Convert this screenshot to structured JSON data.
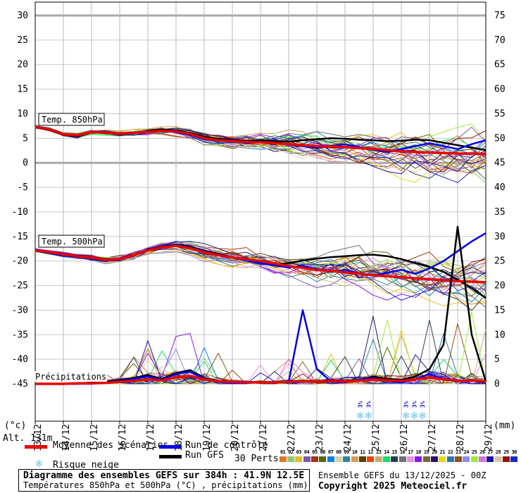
{
  "chart": {
    "alt_label": "Alt. 131m",
    "left_axis": {
      "unit": "(°c)",
      "ticks": [
        30,
        25,
        20,
        15,
        10,
        5,
        0,
        -5,
        -10,
        -15,
        -20,
        -25,
        -30,
        -35,
        -40,
        -45
      ]
    },
    "right_axis": {
      "unit": "(mm)",
      "ticks": [
        75,
        70,
        65,
        60,
        55,
        50,
        45,
        40,
        35,
        30,
        25,
        20,
        15,
        10,
        5,
        0
      ]
    },
    "x_axis": {
      "labels": [
        "13/12",
        "14/12",
        "15/12",
        "16/12",
        "17/12",
        "18/12",
        "19/12",
        "20/12",
        "21/12",
        "22/12",
        "23/12",
        "24/12",
        "25/12",
        "26/12",
        "27/12",
        "28/12",
        "29/12"
      ]
    }
  },
  "chart_data": {
    "type": "line",
    "x_hours": [
      0,
      12,
      24,
      36,
      48,
      60,
      72,
      84,
      96,
      108,
      120,
      132,
      144,
      156,
      168,
      180,
      192,
      204,
      216,
      228,
      240,
      252,
      264,
      276,
      288,
      300,
      312,
      324,
      336,
      348,
      360,
      372,
      384
    ],
    "panels": {
      "temp850": {
        "label": "Temp. 850hPa",
        "mean": [
          7.3,
          6.8,
          5.8,
          5.6,
          6.3,
          6.2,
          5.9,
          6.1,
          6.3,
          6.5,
          6.4,
          5.9,
          5.0,
          4.6,
          4.4,
          4.2,
          4.2,
          4.0,
          3.8,
          3.6,
          3.4,
          3.3,
          3.2,
          3.0,
          2.8,
          2.6,
          2.3,
          2.2,
          2.1,
          2.0,
          1.9,
          1.9,
          1.8
        ],
        "control": [
          7.4,
          6.9,
          5.9,
          5.5,
          6.4,
          6.3,
          6.0,
          6.2,
          6.4,
          6.6,
          6.3,
          5.8,
          4.8,
          4.5,
          4.3,
          4.0,
          4.3,
          4.1,
          3.7,
          3.4,
          3.0,
          3.4,
          3.8,
          3.2,
          2.6,
          2.2,
          2.8,
          3.4,
          4.0,
          3.4,
          2.8,
          3.8,
          4.6
        ],
        "gfs": [
          7.2,
          6.7,
          5.7,
          5.4,
          6.2,
          6.1,
          5.8,
          6.0,
          6.5,
          6.8,
          6.6,
          6.1,
          5.3,
          4.9,
          4.6,
          4.4,
          4.6,
          4.4,
          4.3,
          4.6,
          4.8,
          5.0,
          4.9,
          4.7,
          4.6,
          4.4,
          4.5,
          4.7,
          4.6,
          4.1,
          3.6,
          3.1,
          2.6
        ],
        "sigma": [
          0.35,
          0.4,
          0.45,
          0.5,
          0.55,
          0.6,
          0.65,
          0.7,
          0.75,
          0.85,
          0.95,
          1.05,
          1.2,
          1.35,
          1.5,
          1.7,
          1.9,
          2.1,
          2.35,
          2.6,
          2.85,
          3.1,
          3.35,
          3.6,
          3.85,
          4.1,
          4.35,
          4.6,
          4.85,
          5.1,
          5.4,
          5.7,
          6.0
        ]
      },
      "temp500": {
        "label": "Temp. 500hPa",
        "mean": [
          -17.8,
          -18.2,
          -18.6,
          -19.0,
          -19.3,
          -19.8,
          -19.6,
          -18.8,
          -17.8,
          -17.2,
          -16.9,
          -17.4,
          -18.2,
          -18.8,
          -19.3,
          -19.6,
          -20.0,
          -20.5,
          -21.0,
          -21.4,
          -21.8,
          -22.0,
          -22.3,
          -22.6,
          -22.9,
          -23.1,
          -23.3,
          -23.5,
          -23.7,
          -23.9,
          -24.1,
          -24.2,
          -24.3
        ],
        "control": [
          -17.7,
          -18.1,
          -18.5,
          -18.9,
          -19.2,
          -19.7,
          -19.5,
          -18.7,
          -17.7,
          -17.0,
          -16.7,
          -17.3,
          -18.0,
          -18.7,
          -19.2,
          -19.8,
          -20.4,
          -20.9,
          -21.3,
          -21.0,
          -21.6,
          -22.2,
          -21.8,
          -22.5,
          -23.0,
          -22.4,
          -21.8,
          -22.6,
          -21.5,
          -20.0,
          -18.0,
          -16.0,
          -14.3
        ],
        "gfs": [
          -17.9,
          -18.3,
          -18.7,
          -19.1,
          -19.4,
          -19.9,
          -19.7,
          -18.9,
          -17.6,
          -17.0,
          -16.6,
          -17.1,
          -17.9,
          -18.5,
          -19.3,
          -19.7,
          -20.2,
          -20.7,
          -20.4,
          -19.9,
          -19.5,
          -19.2,
          -19.0,
          -18.8,
          -18.7,
          -19.0,
          -19.6,
          -20.4,
          -21.2,
          -22.2,
          -23.8,
          -25.5,
          -27.5
        ],
        "sigma": [
          0.4,
          0.45,
          0.5,
          0.55,
          0.6,
          0.7,
          0.8,
          0.9,
          1.0,
          1.1,
          1.2,
          1.35,
          1.5,
          1.65,
          1.8,
          2.0,
          2.2,
          2.4,
          2.65,
          2.9,
          3.15,
          3.4,
          3.65,
          3.9,
          4.1,
          4.3,
          4.5,
          4.7,
          4.9,
          5.1,
          5.4,
          5.7,
          6.0
        ]
      },
      "precip": {
        "label": "Précipitations",
        "mean": [
          0,
          0,
          0,
          0.1,
          0.1,
          0.2,
          0.4,
          0.6,
          0.9,
          0.7,
          1.3,
          1.6,
          0.9,
          0.5,
          0.4,
          0.3,
          0.3,
          0.3,
          0.4,
          0.5,
          0.4,
          0.6,
          0.5,
          0.6,
          0.9,
          0.7,
          0.6,
          0.9,
          1.3,
          0.9,
          0.6,
          0.7,
          0.5
        ],
        "control": [
          0,
          0,
          0,
          0,
          0,
          0.3,
          0.6,
          1.0,
          1.5,
          0.8,
          2.0,
          2.5,
          1.0,
          0.4,
          0.2,
          0.2,
          0.3,
          0.2,
          0.4,
          15,
          3,
          0.5,
          0.3,
          0.8,
          1.2,
          0.6,
          0.4,
          1.0,
          2.0,
          1.0,
          0.5,
          0.8,
          0.3
        ],
        "gfs": [
          0,
          0,
          0,
          0,
          0.2,
          0.4,
          0.8,
          1.2,
          1.8,
          1.0,
          2.2,
          2.8,
          1.2,
          0.5,
          0.3,
          0.2,
          0.3,
          0.3,
          0.5,
          0.6,
          0.5,
          0.8,
          0.6,
          0.8,
          1.5,
          1.0,
          0.8,
          1.5,
          3.0,
          8.0,
          32,
          10,
          0.5
        ],
        "wet": [
          0.05,
          0.05,
          0.05,
          0.1,
          0.15,
          0.25,
          0.5,
          0.7,
          0.9,
          0.8,
          1,
          1,
          0.8,
          0.5,
          0.3,
          0.25,
          0.25,
          0.25,
          0.35,
          0.45,
          0.4,
          0.5,
          0.5,
          0.6,
          0.8,
          0.7,
          0.6,
          0.8,
          1,
          0.9,
          0.8,
          0.8,
          0.6
        ]
      }
    },
    "snow_risk": {
      "hours": [
        277,
        284,
        316,
        323,
        330
      ],
      "labels": [
        "3%",
        "3%",
        "3%",
        "3%",
        "3%"
      ]
    },
    "members": [
      {
        "id": "01",
        "color": "#e07828"
      },
      {
        "id": "02",
        "color": "#8cc87c"
      },
      {
        "id": "03",
        "color": "#e8bc14"
      },
      {
        "id": "04",
        "color": "#8058b0"
      },
      {
        "id": "05",
        "color": "#a03410"
      },
      {
        "id": "06",
        "color": "#4c6c04"
      },
      {
        "id": "07",
        "color": "#0c80ec"
      },
      {
        "id": "08",
        "color": "#d8d0a4"
      },
      {
        "id": "09",
        "color": "#2c84a4"
      },
      {
        "id": "10",
        "color": "#d89c54"
      },
      {
        "id": "11",
        "color": "#584008"
      },
      {
        "id": "12",
        "color": "#ec4410"
      },
      {
        "id": "13",
        "color": "#c8b068"
      },
      {
        "id": "14",
        "color": "#14dc64"
      },
      {
        "id": "15",
        "color": "#28404c"
      },
      {
        "id": "16",
        "color": "#687078"
      },
      {
        "id": "17",
        "color": "#ec8ce8"
      },
      {
        "id": "18",
        "color": "#8c14ec"
      },
      {
        "id": "19",
        "color": "#786834"
      },
      {
        "id": "20",
        "color": "#28106c"
      },
      {
        "id": "21",
        "color": "#e8d814"
      },
      {
        "id": "22",
        "color": "#2c74a8"
      },
      {
        "id": "23",
        "color": "#8c5418"
      },
      {
        "id": "24",
        "color": "#8c8ce8"
      },
      {
        "id": "25",
        "color": "#9cec3c"
      },
      {
        "id": "26",
        "color": "#d874d8"
      },
      {
        "id": "27",
        "color": "#1c14a4"
      },
      {
        "id": "28",
        "color": "#d8c8a0"
      },
      {
        "id": "29",
        "color": "#98100c"
      },
      {
        "id": "30",
        "color": "#1428c8"
      }
    ],
    "series_colors": {
      "mean": "#e80000",
      "control": "#0000e8",
      "gfs": "#000000"
    }
  },
  "legend": {
    "mean": "Moyenne des scénarios",
    "control": "Run de contrôle",
    "gfs": "Run GFS",
    "perts": "30 Perts.",
    "snow": "Risque neige",
    "snow_icon": "❄"
  },
  "footer": {
    "title_line1": "Diagramme des ensembles GEFS sur 384h : 41.9N 12.5E",
    "title_line2": "Températures 850hPa et 500hPa (°C) , précipitations (mm)",
    "run_info": "Ensemble GEFS du 13/12/2025 - 00Z",
    "copyright": "Copyright 2025 Meteociel.fr"
  }
}
